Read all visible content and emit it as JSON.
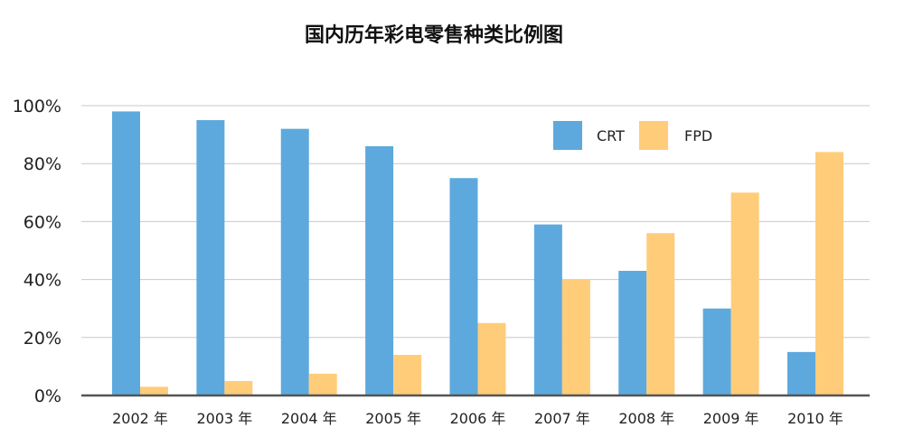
{
  "chart_data": {
    "type": "bar",
    "title": "国内历年彩电零售种类比例图",
    "xlabel": "",
    "ylabel": "",
    "categories": [
      "2002 年",
      "2003 年",
      "2004 年",
      "2005 年",
      "2006 年",
      "2007 年",
      "2008 年",
      "2009 年",
      "2010 年"
    ],
    "series": [
      {
        "name": "CRT",
        "color": "#5DA9DD",
        "values": [
          98,
          95,
          92,
          86,
          75,
          59,
          43,
          30,
          15
        ]
      },
      {
        "name": "FPD",
        "color": "#FFCC7A",
        "values": [
          3,
          5,
          7.5,
          14,
          25,
          40,
          56,
          70,
          84
        ]
      }
    ],
    "ylim": [
      0,
      100
    ],
    "yticks": [
      "0%",
      "20%",
      "40%",
      "60%",
      "80%",
      "100%"
    ],
    "ytick_values": [
      0,
      20,
      40,
      60,
      80,
      100
    ],
    "grid": true,
    "legend_position": "top-right"
  }
}
